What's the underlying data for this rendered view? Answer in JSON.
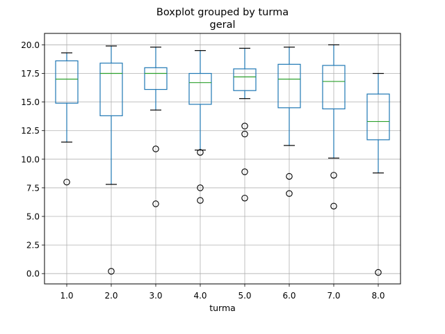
{
  "chart_data": {
    "type": "boxplot",
    "title": "Boxplot grouped by turma",
    "subtitle": "geral",
    "xlabel": "turma",
    "ylabel": "",
    "ylim": [
      -0.9,
      21.0
    ],
    "yticks": [
      "0.0",
      "2.5",
      "5.0",
      "7.5",
      "10.0",
      "12.5",
      "15.0",
      "17.5",
      "20.0"
    ],
    "grid": true,
    "categories": [
      "1.0",
      "2.0",
      "3.0",
      "4.0",
      "5.0",
      "6.0",
      "7.0",
      "8.0"
    ],
    "boxes": [
      {
        "whislo": 11.5,
        "q1": 14.9,
        "med": 17.0,
        "q3": 18.6,
        "whishi": 19.3,
        "fliers": [
          8.0
        ]
      },
      {
        "whislo": 7.8,
        "q1": 13.8,
        "med": 17.5,
        "q3": 18.4,
        "whishi": 19.9,
        "fliers": [
          0.2
        ]
      },
      {
        "whislo": 14.3,
        "q1": 16.1,
        "med": 17.5,
        "q3": 18.0,
        "whishi": 19.8,
        "fliers": [
          10.9,
          6.1
        ]
      },
      {
        "whislo": 10.8,
        "q1": 14.8,
        "med": 16.7,
        "q3": 17.5,
        "whishi": 19.5,
        "fliers": [
          10.6,
          7.5,
          6.4
        ]
      },
      {
        "whislo": 15.3,
        "q1": 16.0,
        "med": 17.2,
        "q3": 17.9,
        "whishi": 19.7,
        "fliers": [
          12.9,
          12.2,
          8.9,
          6.6
        ]
      },
      {
        "whislo": 11.2,
        "q1": 14.5,
        "med": 17.0,
        "q3": 18.3,
        "whishi": 19.8,
        "fliers": [
          8.5,
          7.0
        ]
      },
      {
        "whislo": 10.1,
        "q1": 14.4,
        "med": 16.8,
        "q3": 18.2,
        "whishi": 20.0,
        "fliers": [
          8.6,
          5.9
        ]
      },
      {
        "whislo": 8.8,
        "q1": 11.7,
        "med": 13.3,
        "q3": 15.7,
        "whishi": 17.5,
        "fliers": [
          0.1
        ]
      }
    ],
    "colors": {
      "box": "#1f77b4",
      "median": "#2ca02c",
      "whisker_cap": "#000000",
      "flier": "#000000",
      "grid": "#b0b0b0"
    }
  }
}
